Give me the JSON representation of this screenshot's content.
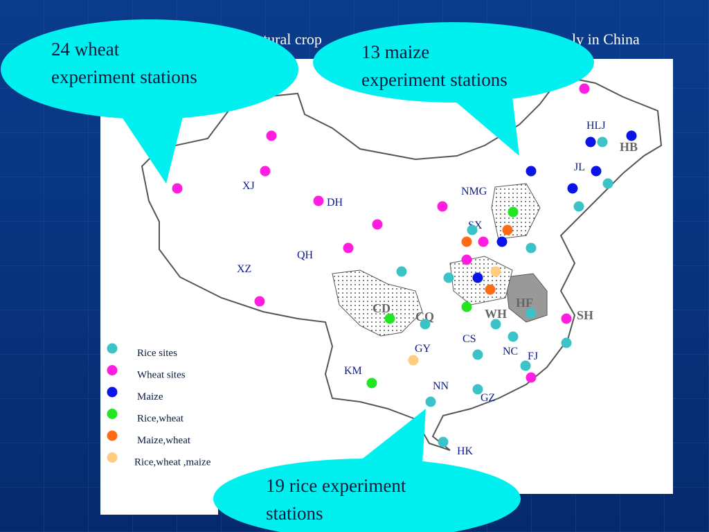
{
  "title_fragments": [
    "tural crop",
    "ly in China"
  ],
  "callouts": [
    {
      "lines": [
        "24 wheat",
        "experiment stations"
      ]
    },
    {
      "lines": [
        "13 maize",
        "experiment stations"
      ]
    },
    {
      "lines": [
        "19 rice experiment",
        "stations"
      ]
    }
  ],
  "legend": [
    {
      "label": "Rice sites",
      "color": "#3cc3c8"
    },
    {
      "label": "Wheat sites",
      "color": "#ff1ee0"
    },
    {
      "label": "Maize",
      "color": "#0a14e6"
    },
    {
      "label": "Rice,wheat",
      "color": "#22e622"
    },
    {
      "label": "Maize,wheat",
      "color": "#ff6a14"
    },
    {
      "label": "Rice,wheat ,maize",
      "color": "#ffcc80"
    }
  ],
  "map_labels": [
    "XJ",
    "DH",
    "NMG",
    "HLJ",
    "JL",
    "SX",
    "QH",
    "XZ",
    "GY",
    "CS",
    "NC",
    "FJ",
    "KM",
    "NN",
    "GZ",
    "HK",
    "CD",
    "CQ",
    "WH",
    "HF",
    "SH",
    "HB"
  ]
}
